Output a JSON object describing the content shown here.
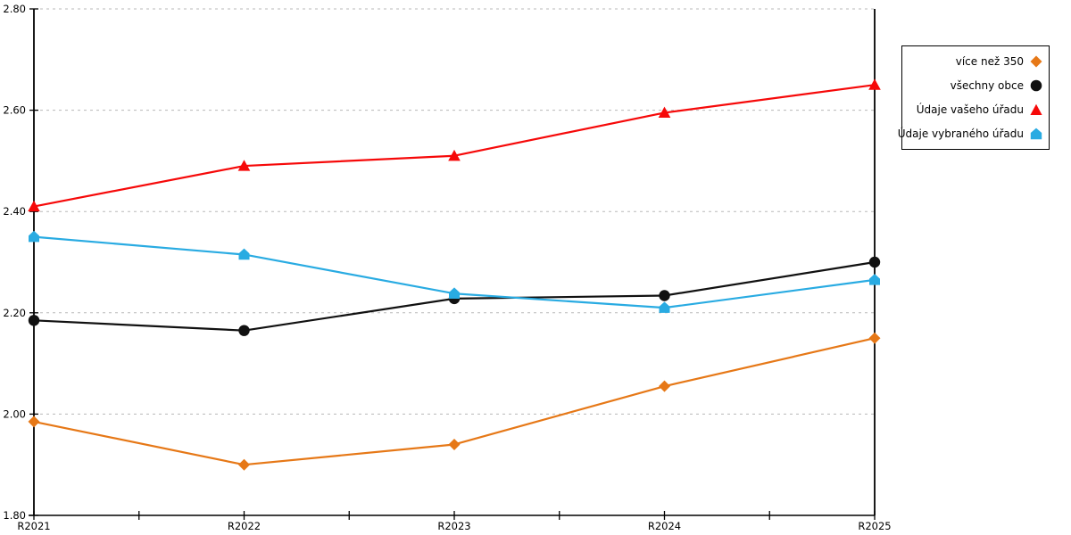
{
  "chart_data": {
    "type": "line",
    "categories": [
      "R2021",
      "R2022",
      "R2023",
      "R2024",
      "R2025"
    ],
    "series": [
      {
        "name": "více než 350",
        "color": "#e67817",
        "marker": "diamond",
        "values": [
          1.985,
          1.9,
          1.94,
          2.055,
          2.15
        ]
      },
      {
        "name": "všechny obce",
        "color": "#111111",
        "marker": "circle",
        "values": [
          2.185,
          2.165,
          2.228,
          2.234,
          2.3
        ]
      },
      {
        "name": "Údaje vašeho úřadu",
        "color": "#f60909",
        "marker": "triangle",
        "values": [
          2.41,
          2.49,
          2.51,
          2.595,
          2.65
        ]
      },
      {
        "name": "Údaje vybraného úřadu",
        "color": "#29abe2",
        "marker": "pentagon",
        "values": [
          2.35,
          2.315,
          2.238,
          2.21,
          2.265
        ]
      }
    ],
    "title": "",
    "xlabel": "",
    "ylabel": "",
    "ylim": [
      1.8,
      2.8
    ],
    "ytick_step": 0.2,
    "ytick_labels": [
      "1.80",
      "2.00",
      "2.20",
      "2.40",
      "2.60",
      "2.80"
    ],
    "grid": "horizontal-dashed",
    "grid_color": "#b8b8b8",
    "axis_color": "#000000",
    "legend_position": "top-right"
  }
}
